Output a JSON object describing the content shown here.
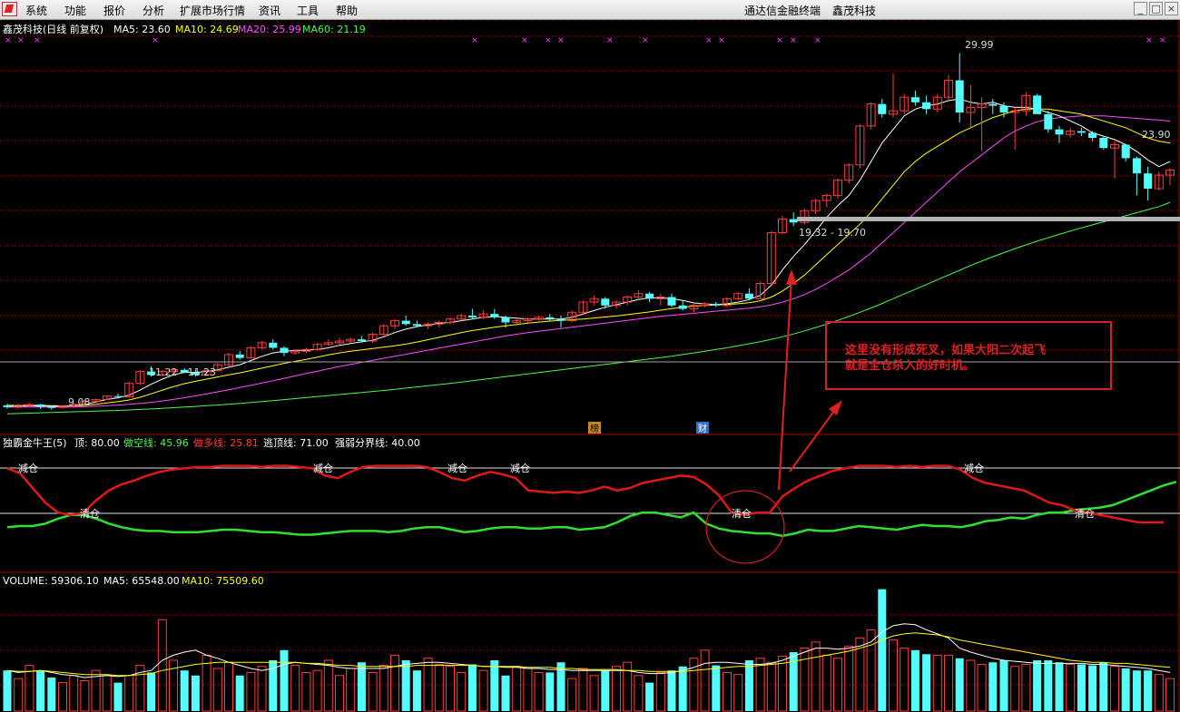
{
  "menu": {
    "items": [
      "系统",
      "功能",
      "报价",
      "分析",
      "扩展市场行情",
      "资讯",
      "工具",
      "帮助"
    ],
    "app_title": "通达信金融终端",
    "stock_title": "鑫茂科技"
  },
  "main_panel": {
    "title": "鑫茂科技(日线 前复权)",
    "ma5_label": "MA5: 23.60",
    "ma10_label": "MA10: 24.69",
    "ma20_label": "MA20: 25.99",
    "ma60_label": "MA60: 21.19",
    "high_label": "29.99",
    "low_label": "9.08",
    "right_price_label": "23.90",
    "range1": "19.32 - 19.70",
    "range2": "11.22 - 11.23",
    "event1": "榜",
    "event2": "财"
  },
  "indicator_panel": {
    "title": "独霸金牛王(5)",
    "top_label": "顶: 80.00",
    "short_label": "做空线: 45.96",
    "long_label": "做多线: 25.81",
    "escape_label": "逃顶线: 71.00",
    "divide_label": "强弱分界线: 40.00",
    "reduce": "减仓",
    "clear": "清仓"
  },
  "volume_panel": {
    "vol_label": "VOLUME: 59306.10",
    "ma5_label": "MA5: 65548.00",
    "ma10_label": "MA10: 75509.60"
  },
  "annotation": {
    "line1": "这里没有形成死叉，如果大阳二次起飞",
    "line2": "就是全仓杀入的好时机。"
  },
  "colors": {
    "up": "#ff3c3c",
    "down": "#54fcfc",
    "ma5": "#ffffff",
    "ma10": "#ffff00",
    "ma20": "#ff4cff",
    "ma60": "#4cf84c",
    "grid": "#8b0000",
    "annot": "#e02020"
  },
  "chart_data": {
    "type": "candlestick",
    "price_axis": [
      8.5,
      31
    ],
    "candles": [
      [
        9.2,
        9.3,
        9.0,
        9.1
      ],
      [
        9.1,
        9.3,
        9.0,
        9.2
      ],
      [
        9.2,
        9.35,
        9.1,
        9.25
      ],
      [
        9.25,
        9.3,
        9.0,
        9.1
      ],
      [
        9.1,
        9.2,
        8.95,
        9.08
      ],
      [
        9.08,
        9.2,
        9.0,
        9.15
      ],
      [
        9.15,
        9.3,
        9.1,
        9.25
      ],
      [
        9.25,
        9.5,
        9.2,
        9.45
      ],
      [
        9.45,
        9.6,
        9.4,
        9.55
      ],
      [
        9.55,
        9.8,
        9.5,
        9.75
      ],
      [
        9.75,
        9.9,
        9.6,
        9.7
      ],
      [
        9.7,
        10.6,
        9.7,
        10.5
      ],
      [
        10.5,
        11.3,
        10.4,
        11.2
      ],
      [
        11.2,
        11.5,
        10.9,
        11.0
      ],
      [
        11.0,
        11.3,
        10.9,
        11.2
      ],
      [
        11.2,
        11.4,
        11.1,
        11.3
      ],
      [
        11.3,
        11.4,
        11.1,
        11.15
      ],
      [
        11.15,
        11.3,
        10.9,
        11.0
      ],
      [
        11.0,
        11.3,
        10.95,
        11.25
      ],
      [
        11.25,
        11.7,
        11.2,
        11.6
      ],
      [
        11.6,
        12.3,
        11.5,
        12.2
      ],
      [
        12.2,
        12.4,
        11.9,
        12.0
      ],
      [
        12.0,
        12.7,
        12.0,
        12.6
      ],
      [
        12.6,
        13.0,
        12.5,
        12.9
      ],
      [
        12.9,
        13.1,
        12.5,
        12.6
      ],
      [
        12.6,
        12.7,
        12.1,
        12.3
      ],
      [
        12.3,
        12.5,
        12.2,
        12.4
      ],
      [
        12.4,
        12.6,
        12.3,
        12.5
      ],
      [
        12.5,
        12.9,
        12.4,
        12.8
      ],
      [
        12.8,
        13.1,
        12.7,
        12.9
      ],
      [
        12.9,
        13.2,
        12.8,
        13.0
      ],
      [
        13.0,
        13.2,
        12.9,
        13.1
      ],
      [
        13.1,
        13.3,
        12.9,
        13.0
      ],
      [
        13.0,
        13.5,
        12.9,
        13.4
      ],
      [
        13.4,
        14.0,
        13.3,
        13.9
      ],
      [
        13.9,
        14.3,
        13.7,
        14.2
      ],
      [
        14.2,
        14.5,
        13.9,
        14.0
      ],
      [
        14.0,
        14.2,
        13.8,
        13.9
      ],
      [
        13.9,
        14.1,
        13.7,
        14.0
      ],
      [
        14.0,
        14.2,
        13.8,
        14.1
      ],
      [
        14.1,
        14.4,
        14.0,
        14.3
      ],
      [
        14.3,
        14.6,
        14.2,
        14.5
      ],
      [
        14.5,
        14.9,
        14.3,
        14.4
      ],
      [
        14.4,
        14.8,
        14.3,
        14.6
      ],
      [
        14.6,
        14.9,
        14.3,
        14.4
      ],
      [
        14.4,
        14.5,
        13.8,
        14.1
      ],
      [
        14.1,
        14.3,
        13.9,
        14.2
      ],
      [
        14.2,
        14.4,
        14.1,
        14.3
      ],
      [
        14.3,
        14.5,
        14.2,
        14.4
      ],
      [
        14.4,
        14.6,
        14.2,
        14.3
      ],
      [
        14.3,
        14.5,
        13.8,
        14.2
      ],
      [
        14.2,
        14.8,
        14.1,
        14.7
      ],
      [
        14.7,
        15.4,
        14.6,
        15.3
      ],
      [
        15.3,
        15.7,
        15.1,
        15.5
      ],
      [
        15.5,
        15.6,
        14.9,
        15.1
      ],
      [
        15.1,
        15.4,
        14.9,
        15.3
      ],
      [
        15.3,
        15.7,
        15.1,
        15.6
      ],
      [
        15.6,
        16.0,
        15.4,
        15.8
      ],
      [
        15.8,
        15.9,
        15.3,
        15.5
      ],
      [
        15.5,
        15.8,
        15.1,
        15.6
      ],
      [
        15.6,
        15.8,
        15.0,
        15.1
      ],
      [
        15.1,
        15.4,
        14.8,
        14.9
      ],
      [
        14.9,
        15.2,
        14.7,
        15.1
      ],
      [
        15.1,
        15.3,
        15.0,
        15.2
      ],
      [
        15.2,
        15.3,
        15.0,
        15.1
      ],
      [
        15.1,
        15.6,
        15.0,
        15.5
      ],
      [
        15.5,
        15.9,
        15.4,
        15.8
      ],
      [
        15.8,
        16.1,
        15.4,
        15.5
      ],
      [
        15.5,
        16.5,
        15.5,
        16.4
      ],
      [
        16.4,
        19.5,
        16.3,
        19.4
      ],
      [
        19.4,
        20.4,
        19.3,
        20.2
      ],
      [
        20.2,
        20.6,
        19.8,
        20.0
      ],
      [
        20.0,
        20.8,
        19.9,
        20.7
      ],
      [
        20.7,
        21.4,
        20.5,
        21.3
      ],
      [
        21.3,
        21.7,
        20.9,
        21.6
      ],
      [
        21.6,
        22.6,
        21.4,
        22.5
      ],
      [
        22.5,
        23.5,
        22.3,
        23.4
      ],
      [
        23.4,
        25.8,
        23.2,
        25.7
      ],
      [
        25.7,
        27.1,
        25.5,
        27.0
      ],
      [
        27.0,
        27.3,
        26.2,
        26.4
      ],
      [
        26.4,
        28.8,
        26.2,
        26.6
      ],
      [
        26.6,
        27.6,
        26.4,
        27.4
      ],
      [
        27.4,
        27.8,
        26.9,
        27.1
      ],
      [
        27.1,
        27.5,
        26.4,
        26.7
      ],
      [
        26.7,
        27.6,
        26.5,
        27.4
      ],
      [
        27.4,
        28.7,
        27.2,
        28.4
      ],
      [
        28.4,
        30.0,
        25.9,
        26.5
      ],
      [
        26.5,
        28.1,
        25.6,
        26.8
      ],
      [
        26.8,
        27.4,
        24.2,
        27.0
      ],
      [
        27.0,
        27.3,
        26.4,
        26.9
      ],
      [
        26.9,
        27.1,
        26.2,
        26.5
      ],
      [
        26.5,
        26.8,
        24.3,
        26.6
      ],
      [
        26.6,
        27.7,
        26.3,
        27.5
      ],
      [
        27.5,
        27.6,
        26.5,
        26.4
      ],
      [
        26.4,
        26.6,
        25.3,
        25.5
      ],
      [
        25.5,
        25.7,
        24.7,
        25.2
      ],
      [
        25.2,
        25.6,
        25.0,
        25.4
      ],
      [
        25.4,
        25.6,
        25.1,
        25.3
      ],
      [
        25.3,
        25.4,
        24.8,
        25.0
      ],
      [
        25.0,
        25.1,
        24.3,
        24.4
      ],
      [
        24.4,
        24.8,
        22.6,
        24.6
      ],
      [
        24.6,
        24.6,
        23.6,
        23.8
      ],
      [
        23.8,
        23.9,
        21.6,
        22.9
      ],
      [
        22.9,
        23.3,
        21.3,
        22.0
      ],
      [
        22.0,
        23.0,
        21.9,
        22.8
      ],
      [
        22.8,
        23.2,
        22.2,
        23.1
      ]
    ],
    "ma5": [
      9.15,
      9.15,
      9.17,
      9.17,
      9.15,
      9.15,
      9.17,
      9.25,
      9.4,
      9.55,
      9.65,
      9.8,
      10.1,
      10.45,
      10.75,
      11.0,
      11.15,
      11.15,
      11.2,
      11.3,
      11.45,
      11.6,
      11.85,
      12.1,
      12.3,
      12.4,
      12.45,
      12.45,
      12.5,
      12.6,
      12.75,
      12.85,
      12.95,
      13.05,
      13.25,
      13.5,
      13.7,
      13.85,
      13.95,
      14.05,
      14.1,
      14.2,
      14.3,
      14.4,
      14.45,
      14.4,
      14.35,
      14.3,
      14.3,
      14.3,
      14.3,
      14.4,
      14.6,
      14.8,
      15.0,
      15.15,
      15.3,
      15.45,
      15.55,
      15.55,
      15.5,
      15.4,
      15.25,
      15.2,
      15.15,
      15.2,
      15.3,
      15.45,
      15.7,
      16.3,
      17.2,
      18.0,
      18.7,
      19.5,
      20.3,
      21.0,
      21.6,
      22.5,
      23.6,
      24.7,
      25.5,
      26.3,
      26.7,
      26.9,
      27.0,
      27.2,
      27.3,
      27.1,
      27.0,
      27.1,
      26.9,
      26.8,
      26.8,
      26.7,
      26.5,
      26.3,
      26.0,
      25.7,
      25.3,
      25.1,
      24.9,
      24.6,
      24.2,
      23.7,
      23.3,
      23.6
    ],
    "ma10": [
      9.2,
      9.2,
      9.2,
      9.2,
      9.18,
      9.17,
      9.17,
      9.2,
      9.26,
      9.34,
      9.42,
      9.52,
      9.68,
      9.88,
      10.1,
      10.3,
      10.48,
      10.62,
      10.75,
      10.88,
      11.0,
      11.12,
      11.26,
      11.4,
      11.54,
      11.68,
      11.8,
      11.92,
      12.05,
      12.18,
      12.3,
      12.4,
      12.48,
      12.56,
      12.64,
      12.72,
      12.82,
      12.94,
      13.08,
      13.22,
      13.36,
      13.5,
      13.62,
      13.72,
      13.82,
      13.9,
      13.98,
      14.06,
      14.12,
      14.18,
      14.22,
      14.26,
      14.3,
      14.36,
      14.42,
      14.48,
      14.56,
      14.64,
      14.72,
      14.82,
      14.92,
      15.0,
      15.06,
      15.1,
      15.14,
      15.16,
      15.2,
      15.26,
      15.38,
      15.6,
      15.95,
      16.4,
      16.9,
      17.5,
      18.1,
      18.7,
      19.3,
      19.9,
      20.6,
      21.4,
      22.2,
      23.0,
      23.6,
      24.1,
      24.5,
      24.9,
      25.3,
      25.6,
      25.9,
      26.2,
      26.4,
      26.6,
      26.7,
      26.7,
      26.7,
      26.6,
      26.5,
      26.4,
      26.2,
      26.0,
      25.8,
      25.6,
      25.3,
      25.0,
      24.8,
      24.7
    ],
    "ma20": [
      9.1,
      9.1,
      9.1,
      9.1,
      9.1,
      9.1,
      9.1,
      9.12,
      9.15,
      9.18,
      9.22,
      9.26,
      9.32,
      9.38,
      9.46,
      9.55,
      9.65,
      9.76,
      9.88,
      10.0,
      10.12,
      10.25,
      10.38,
      10.52,
      10.66,
      10.8,
      10.94,
      11.08,
      11.22,
      11.36,
      11.5,
      11.62,
      11.74,
      11.86,
      11.98,
      12.1,
      12.22,
      12.34,
      12.46,
      12.58,
      12.7,
      12.82,
      12.94,
      13.06,
      13.18,
      13.3,
      13.4,
      13.5,
      13.58,
      13.66,
      13.74,
      13.82,
      13.9,
      13.98,
      14.06,
      14.14,
      14.22,
      14.3,
      14.38,
      14.46,
      14.52,
      14.58,
      14.64,
      14.7,
      14.76,
      14.82,
      14.88,
      14.94,
      15.02,
      15.14,
      15.3,
      15.5,
      15.75,
      16.05,
      16.4,
      16.8,
      17.2,
      17.7,
      18.2,
      18.8,
      19.4,
      20.0,
      20.6,
      21.2,
      21.8,
      22.4,
      23.0,
      23.5,
      24.0,
      24.5,
      25.0,
      25.4,
      25.7,
      25.95,
      26.1,
      26.2,
      26.25,
      26.3,
      26.3,
      26.3,
      26.25,
      26.2,
      26.15,
      26.1,
      26.05,
      25.99
    ],
    "ma60": [
      8.7,
      8.72,
      8.74,
      8.76,
      8.78,
      8.8,
      8.82,
      8.84,
      8.86,
      8.88,
      8.9,
      8.93,
      8.96,
      8.99,
      9.02,
      9.06,
      9.1,
      9.14,
      9.18,
      9.22,
      9.27,
      9.32,
      9.37,
      9.42,
      9.48,
      9.54,
      9.6,
      9.66,
      9.72,
      9.78,
      9.84,
      9.9,
      9.96,
      10.02,
      10.08,
      10.15,
      10.22,
      10.29,
      10.36,
      10.43,
      10.5,
      10.58,
      10.66,
      10.74,
      10.82,
      10.9,
      10.98,
      11.06,
      11.14,
      11.22,
      11.3,
      11.38,
      11.46,
      11.54,
      11.62,
      11.7,
      11.78,
      11.86,
      11.94,
      12.02,
      12.1,
      12.2,
      12.3,
      12.4,
      12.5,
      12.6,
      12.72,
      12.84,
      12.96,
      13.1,
      13.25,
      13.42,
      13.6,
      13.8,
      14.0,
      14.22,
      14.45,
      14.7,
      14.95,
      15.22,
      15.5,
      15.78,
      16.06,
      16.34,
      16.62,
      16.9,
      17.18,
      17.46,
      17.72,
      17.98,
      18.22,
      18.46,
      18.68,
      18.9,
      19.1,
      19.3,
      19.5,
      19.68,
      19.86,
      20.04,
      20.22,
      20.4,
      20.58,
      20.76,
      20.94,
      21.19
    ],
    "ind_red": [
      78,
      74,
      62,
      50,
      42,
      40,
      42,
      52,
      60,
      65,
      68,
      72,
      75,
      77,
      78,
      79,
      79,
      80,
      80,
      80,
      79,
      80,
      80,
      79,
      78,
      72,
      70,
      75,
      79,
      80,
      80,
      80,
      80,
      79,
      75,
      70,
      68,
      72,
      75,
      73,
      70,
      60,
      59,
      58,
      59,
      58,
      60,
      63,
      60,
      62,
      66,
      68,
      70,
      72,
      71,
      65,
      56,
      42,
      40,
      42,
      42,
      55,
      62,
      68,
      72,
      76,
      78,
      80,
      80,
      80,
      79,
      80,
      79,
      80,
      80,
      77,
      70,
      66,
      64,
      62,
      60,
      55,
      50,
      48,
      44,
      42,
      40,
      38,
      36,
      34,
      34,
      34
    ],
    "ind_green": [
      30,
      31,
      31,
      33,
      37,
      40,
      40,
      37,
      33,
      30,
      28,
      27,
      27,
      26,
      26,
      26,
      27,
      28,
      28,
      27,
      26,
      26,
      25,
      24,
      24,
      25,
      26,
      27,
      27,
      27,
      26,
      27,
      29,
      30,
      30,
      28,
      26,
      27,
      29,
      30,
      30,
      29,
      29,
      30,
      30,
      28,
      29,
      30,
      34,
      39,
      42,
      42,
      40,
      38,
      42,
      33,
      29,
      27,
      26,
      25,
      25,
      23,
      25,
      28,
      27,
      27,
      29,
      31,
      30,
      29,
      28,
      30,
      32,
      31,
      31,
      30,
      32,
      35,
      36,
      38,
      37,
      40,
      42,
      42,
      44,
      45,
      46,
      48,
      52,
      56,
      60,
      64,
      67
    ],
    "volume": [
      40,
      32,
      45,
      40,
      33,
      28,
      35,
      30,
      40,
      35,
      28,
      35,
      45,
      38,
      90,
      50,
      40,
      35,
      55,
      42,
      48,
      35,
      38,
      44,
      50,
      60,
      45,
      38,
      40,
      50,
      35,
      42,
      48,
      38,
      45,
      55,
      50,
      40,
      52,
      46,
      44,
      38,
      46,
      40,
      50,
      35,
      44,
      42,
      38,
      38,
      48,
      32,
      42,
      35,
      40,
      44,
      48,
      35,
      28,
      38,
      40,
      44,
      52,
      60,
      45,
      38,
      36,
      50,
      52,
      48,
      54,
      58,
      62,
      68,
      55,
      52,
      64,
      72,
      80,
      120,
      70,
      62,
      60,
      56,
      55,
      55,
      52,
      50,
      46,
      48,
      50,
      44,
      46,
      50,
      50,
      48,
      46,
      46,
      45,
      48,
      44,
      42,
      40,
      40,
      36,
      32
    ],
    "vol_ma5": [
      40,
      38,
      39,
      40,
      38,
      36,
      35,
      33,
      34,
      35,
      34,
      35,
      38,
      40,
      50,
      55,
      58,
      60,
      55,
      52,
      48,
      45,
      42,
      40,
      42,
      46,
      48,
      47,
      46,
      45,
      43,
      42,
      42,
      42,
      42,
      44,
      46,
      47,
      48,
      48,
      47,
      46,
      45,
      44,
      44,
      43,
      43,
      42,
      42,
      41,
      41,
      40,
      40,
      40,
      40,
      40,
      40,
      38,
      37,
      37,
      38,
      40,
      43,
      47,
      48,
      48,
      47,
      46,
      46,
      47,
      50,
      54,
      58,
      62,
      62,
      61,
      62,
      64,
      68,
      78,
      84,
      86,
      85,
      80,
      76,
      72,
      62,
      58,
      55,
      52,
      50,
      49,
      48,
      47,
      47,
      47,
      47,
      47,
      46,
      46,
      45,
      44,
      43,
      42,
      40,
      38
    ],
    "vol_ma10": [
      40,
      39,
      39,
      40,
      39,
      38,
      37,
      36,
      36,
      36,
      35,
      35,
      36,
      37,
      40,
      42,
      44,
      46,
      47,
      48,
      48,
      48,
      48,
      48,
      48,
      48,
      48,
      47,
      47,
      46,
      45,
      45,
      44,
      44,
      44,
      44,
      44,
      45,
      45,
      45,
      45,
      45,
      45,
      44,
      44,
      44,
      44,
      43,
      43,
      43,
      42,
      42,
      41,
      41,
      41,
      41,
      40,
      40,
      39,
      39,
      39,
      39,
      40,
      41,
      42,
      43,
      44,
      44,
      45,
      46,
      47,
      49,
      51,
      53,
      55,
      57,
      59,
      62,
      65,
      70,
      74,
      76,
      77,
      76,
      75,
      73,
      70,
      68,
      66,
      64,
      62,
      60,
      58,
      56,
      54,
      52,
      50,
      49,
      48,
      48,
      47,
      47,
      46,
      45,
      44,
      43
    ]
  }
}
